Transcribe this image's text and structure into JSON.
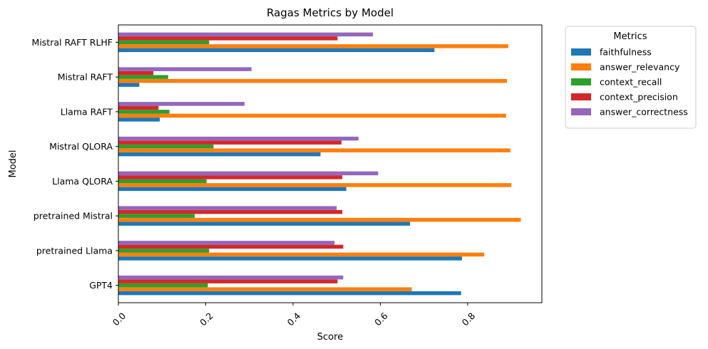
{
  "chart_data": {
    "type": "bar",
    "orientation": "horizontal",
    "title": "Ragas Metrics by Model",
    "xlabel": "Score",
    "ylabel": "Model",
    "xlim": [
      0,
      0.97
    ],
    "xticks": [
      "0.0",
      "0.2",
      "0.4",
      "0.6",
      "0.8"
    ],
    "categories": [
      "GPT4",
      "pretrained Llama",
      "pretrained Mistral",
      "Llama QLORA",
      "Mistral QLORA",
      "Llama RAFT",
      "Mistral RAFT",
      "Mistral RAFT RLHF"
    ],
    "series": [
      {
        "name": "faithfulness",
        "color": "#1f77b4",
        "values": [
          0.785,
          0.787,
          0.668,
          0.522,
          0.463,
          0.095,
          0.048,
          0.724
        ]
      },
      {
        "name": "answer_relevancy",
        "color": "#ff7f0e",
        "values": [
          0.672,
          0.838,
          0.922,
          0.9,
          0.898,
          0.888,
          0.89,
          0.893
        ]
      },
      {
        "name": "context_recall",
        "color": "#2ca02c",
        "values": [
          0.205,
          0.208,
          0.175,
          0.202,
          0.218,
          0.117,
          0.114,
          0.208
        ]
      },
      {
        "name": "context_precision",
        "color": "#d62728",
        "values": [
          0.502,
          0.515,
          0.513,
          0.513,
          0.511,
          0.092,
          0.08,
          0.502
        ]
      },
      {
        "name": "answer_correctness",
        "color": "#9467bd",
        "values": [
          0.515,
          0.495,
          0.5,
          0.595,
          0.55,
          0.289,
          0.305,
          0.583
        ]
      }
    ],
    "legend": {
      "title": "Metrics",
      "placement": "outside-right-top"
    },
    "grid": false
  }
}
